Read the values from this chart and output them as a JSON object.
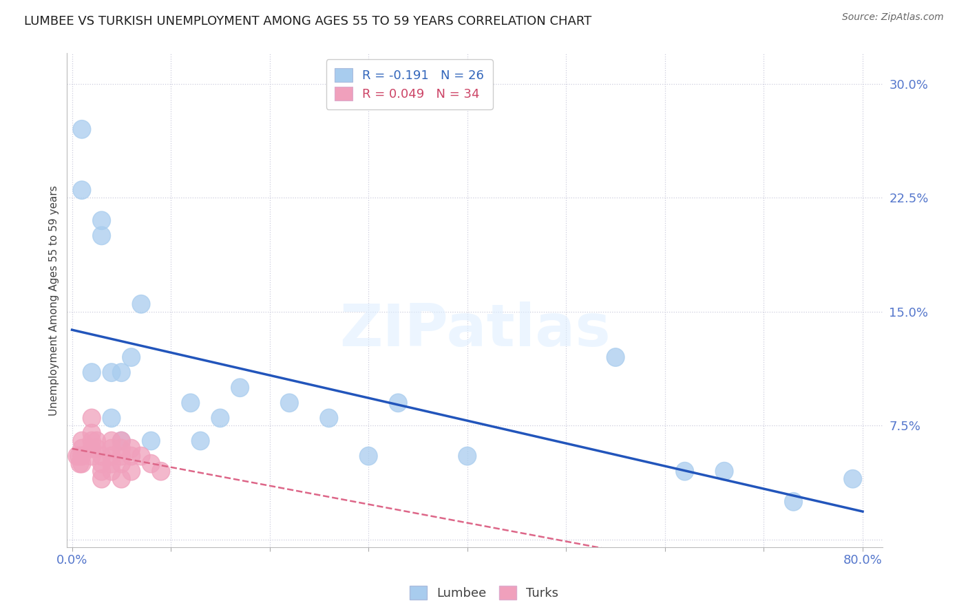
{
  "title": "LUMBEE VS TURKISH UNEMPLOYMENT AMONG AGES 55 TO 59 YEARS CORRELATION CHART",
  "source": "Source: ZipAtlas.com",
  "ylabel": "Unemployment Among Ages 55 to 59 years",
  "xlabel": "",
  "xlim": [
    -0.005,
    0.82
  ],
  "ylim": [
    -0.005,
    0.32
  ],
  "xtick_positions": [
    0.0,
    0.1,
    0.2,
    0.3,
    0.4,
    0.5,
    0.6,
    0.7,
    0.8
  ],
  "xtick_labels": [
    "0.0%",
    "",
    "",
    "",
    "",
    "",
    "",
    "",
    "80.0%"
  ],
  "ytick_positions": [
    0.0,
    0.075,
    0.15,
    0.225,
    0.3
  ],
  "ytick_labels": [
    "",
    "7.5%",
    "15.0%",
    "22.5%",
    "30.0%"
  ],
  "lumbee_R": -0.191,
  "lumbee_N": 26,
  "turks_R": 0.049,
  "turks_N": 34,
  "lumbee_color": "#A8CCEE",
  "turks_color": "#F0A0BC",
  "lumbee_line_color": "#2255BB",
  "turks_line_color": "#DD6688",
  "background_color": "#FFFFFF",
  "grid_color": "#CCCCDD",
  "title_color": "#202020",
  "axis_label_color": "#404040",
  "tick_label_color": "#5577CC",
  "legend_r_color_lumbee": "#3366BB",
  "legend_r_color_turks": "#CC4466",
  "watermark_text": "ZIPatlas",
  "lumbee_x": [
    0.01,
    0.01,
    0.02,
    0.03,
    0.03,
    0.04,
    0.04,
    0.05,
    0.05,
    0.06,
    0.07,
    0.08,
    0.12,
    0.13,
    0.15,
    0.17,
    0.22,
    0.26,
    0.3,
    0.33,
    0.4,
    0.55,
    0.62,
    0.66,
    0.73,
    0.79
  ],
  "lumbee_y": [
    0.27,
    0.23,
    0.11,
    0.21,
    0.2,
    0.11,
    0.08,
    0.11,
    0.065,
    0.12,
    0.155,
    0.065,
    0.09,
    0.065,
    0.08,
    0.1,
    0.09,
    0.08,
    0.055,
    0.09,
    0.055,
    0.12,
    0.045,
    0.045,
    0.025,
    0.04
  ],
  "turks_x": [
    0.005,
    0.007,
    0.008,
    0.01,
    0.01,
    0.01,
    0.01,
    0.02,
    0.02,
    0.02,
    0.02,
    0.02,
    0.025,
    0.025,
    0.03,
    0.03,
    0.03,
    0.03,
    0.04,
    0.04,
    0.04,
    0.04,
    0.04,
    0.05,
    0.05,
    0.05,
    0.05,
    0.05,
    0.06,
    0.06,
    0.06,
    0.07,
    0.08,
    0.09
  ],
  "turks_y": [
    0.055,
    0.055,
    0.05,
    0.065,
    0.06,
    0.055,
    0.05,
    0.08,
    0.07,
    0.065,
    0.06,
    0.055,
    0.065,
    0.06,
    0.055,
    0.05,
    0.045,
    0.04,
    0.065,
    0.06,
    0.055,
    0.05,
    0.045,
    0.065,
    0.06,
    0.055,
    0.05,
    0.04,
    0.06,
    0.055,
    0.045,
    0.055,
    0.05,
    0.045
  ]
}
